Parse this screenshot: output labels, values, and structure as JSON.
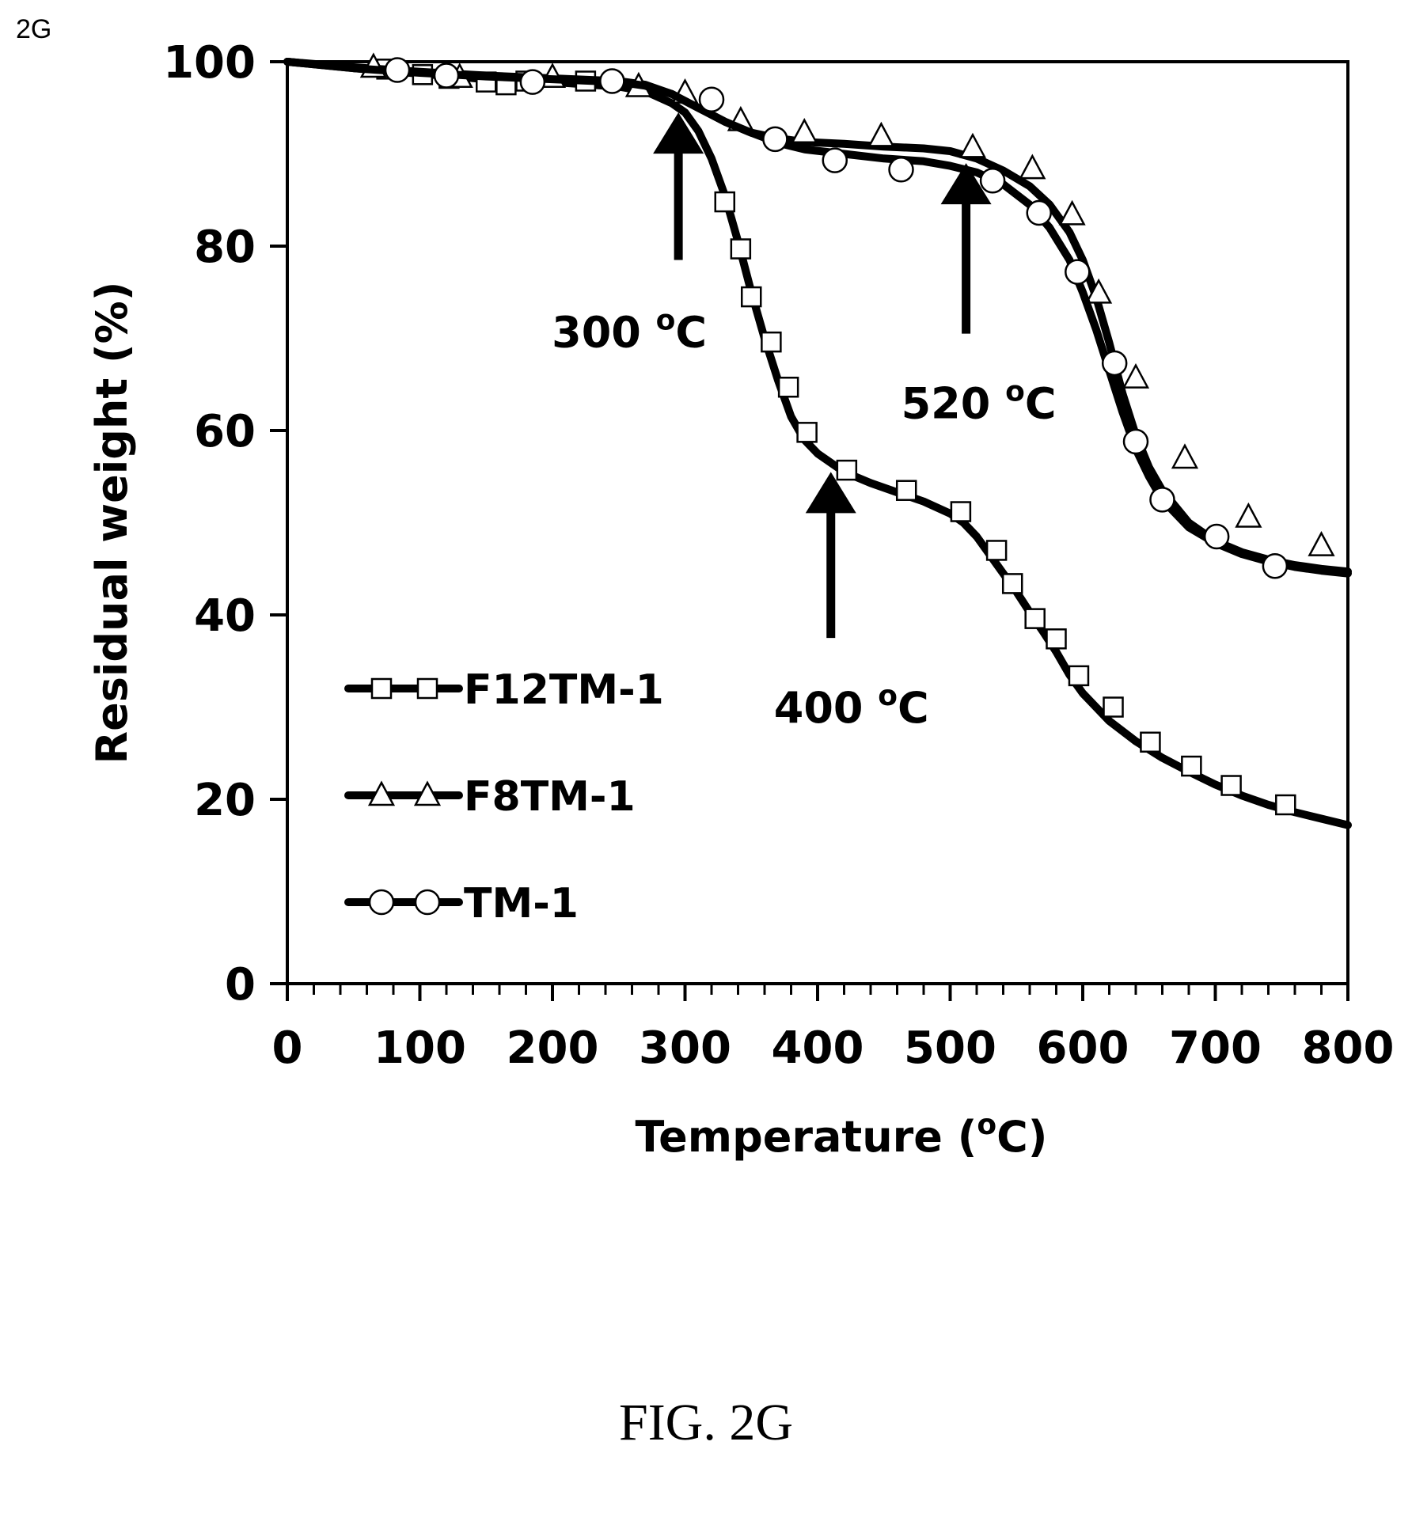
{
  "figure": {
    "corner_label": "2G",
    "caption": "FIG. 2G"
  },
  "chart_data": {
    "type": "line",
    "xlabel": "Temperature (",
    "xlabel_unit": "o",
    "xlabel_end": "C)",
    "ylabel": "Residual weight (%)",
    "xlim": [
      0,
      800
    ],
    "ylim": [
      0,
      100
    ],
    "x_ticks": [
      0,
      100,
      200,
      300,
      400,
      500,
      600,
      700,
      800
    ],
    "y_ticks": [
      0,
      20,
      40,
      60,
      80,
      100
    ],
    "x_tick_labels": [
      "0",
      "100",
      "200",
      "300",
      "400",
      "500",
      "600",
      "700",
      "800"
    ],
    "y_tick_labels": [
      "0",
      "20",
      "40",
      "60",
      "80",
      "100"
    ],
    "grid": false,
    "legend_position": "lower-left",
    "series": [
      {
        "name": "F12TM-1",
        "marker": "square",
        "curve": [
          [
            0,
            100
          ],
          [
            50,
            99.3
          ],
          [
            100,
            98.7
          ],
          [
            150,
            98.1
          ],
          [
            200,
            97.8
          ],
          [
            250,
            97.3
          ],
          [
            270,
            96.8
          ],
          [
            290,
            95.5
          ],
          [
            300,
            94.5
          ],
          [
            310,
            92.5
          ],
          [
            320,
            89.5
          ],
          [
            330,
            85.5
          ],
          [
            340,
            80.5
          ],
          [
            350,
            75
          ],
          [
            360,
            70
          ],
          [
            370,
            65.5
          ],
          [
            380,
            61.5
          ],
          [
            390,
            59
          ],
          [
            400,
            57.5
          ],
          [
            420,
            55.5
          ],
          [
            440,
            54.3
          ],
          [
            460,
            53.3
          ],
          [
            480,
            52.3
          ],
          [
            500,
            51
          ],
          [
            510,
            50
          ],
          [
            520,
            48.5
          ],
          [
            530,
            46.5
          ],
          [
            540,
            44.5
          ],
          [
            550,
            42.5
          ],
          [
            560,
            40.3
          ],
          [
            570,
            38.2
          ],
          [
            580,
            36
          ],
          [
            590,
            33.5
          ],
          [
            600,
            31.5
          ],
          [
            620,
            28.5
          ],
          [
            640,
            26.3
          ],
          [
            660,
            24.5
          ],
          [
            680,
            23
          ],
          [
            700,
            21.6
          ],
          [
            720,
            20.4
          ],
          [
            740,
            19.4
          ],
          [
            760,
            18.6
          ],
          [
            780,
            17.9
          ],
          [
            800,
            17.2
          ]
        ],
        "markers": [
          [
            75,
            99.2
          ],
          [
            102,
            98.6
          ],
          [
            122,
            98.2
          ],
          [
            150,
            97.8
          ],
          [
            165,
            97.5
          ],
          [
            180,
            97.9
          ],
          [
            225,
            97.9
          ],
          [
            330,
            84.8
          ],
          [
            342,
            79.7
          ],
          [
            350,
            74.5
          ],
          [
            365,
            69.6
          ],
          [
            378,
            64.7
          ],
          [
            392,
            59.8
          ],
          [
            422,
            55.7
          ],
          [
            467,
            53.5
          ],
          [
            508,
            51.2
          ],
          [
            535,
            47
          ],
          [
            547,
            43.4
          ],
          [
            564,
            39.6
          ],
          [
            580,
            37.4
          ],
          [
            597,
            33.4
          ],
          [
            623,
            30
          ],
          [
            651,
            26.2
          ],
          [
            682,
            23.6
          ],
          [
            712,
            21.5
          ],
          [
            753,
            19.4
          ]
        ]
      },
      {
        "name": "F8TM-1",
        "marker": "triangle",
        "curve": [
          [
            0,
            100
          ],
          [
            50,
            99.4
          ],
          [
            100,
            98.9
          ],
          [
            150,
            98.5
          ],
          [
            200,
            98.2
          ],
          [
            250,
            97.9
          ],
          [
            270,
            97.5
          ],
          [
            290,
            96.5
          ],
          [
            310,
            95
          ],
          [
            330,
            93.5
          ],
          [
            350,
            92.3
          ],
          [
            370,
            91.7
          ],
          [
            390,
            91.3
          ],
          [
            420,
            91.1
          ],
          [
            450,
            90.8
          ],
          [
            480,
            90.6
          ],
          [
            500,
            90.3
          ],
          [
            520,
            89.5
          ],
          [
            540,
            88.2
          ],
          [
            560,
            86.5
          ],
          [
            575,
            84.5
          ],
          [
            590,
            81.5
          ],
          [
            600,
            78.5
          ],
          [
            610,
            74.5
          ],
          [
            620,
            69.5
          ],
          [
            630,
            64
          ],
          [
            640,
            59.5
          ],
          [
            650,
            56
          ],
          [
            660,
            53.5
          ],
          [
            680,
            50
          ],
          [
            700,
            48
          ],
          [
            720,
            46.8
          ],
          [
            740,
            46
          ],
          [
            760,
            45.4
          ],
          [
            780,
            45
          ],
          [
            800,
            44.7
          ]
        ],
        "markers": [
          [
            65,
            99.4
          ],
          [
            130,
            98.3
          ],
          [
            200,
            98.3
          ],
          [
            265,
            97.3
          ],
          [
            300,
            96.6
          ],
          [
            342,
            93.6
          ],
          [
            390,
            92.3
          ],
          [
            448,
            91.9
          ],
          [
            517,
            90.7
          ],
          [
            562,
            88.4
          ],
          [
            592,
            83.4
          ],
          [
            612,
            74.9
          ],
          [
            640,
            65.7
          ],
          [
            677,
            57
          ],
          [
            725,
            50.6
          ],
          [
            780,
            47.5
          ]
        ]
      },
      {
        "name": "TM-1",
        "marker": "circle",
        "curve": [
          [
            0,
            100
          ],
          [
            50,
            99.3
          ],
          [
            100,
            98.8
          ],
          [
            150,
            98.4
          ],
          [
            200,
            98.1
          ],
          [
            250,
            97.8
          ],
          [
            270,
            97.4
          ],
          [
            290,
            96.5
          ],
          [
            310,
            95
          ],
          [
            330,
            93.5
          ],
          [
            350,
            92.3
          ],
          [
            370,
            91.2
          ],
          [
            390,
            90.5
          ],
          [
            420,
            90
          ],
          [
            450,
            89.5
          ],
          [
            480,
            89.2
          ],
          [
            500,
            88.7
          ],
          [
            520,
            88
          ],
          [
            540,
            86.7
          ],
          [
            560,
            84.5
          ],
          [
            575,
            82
          ],
          [
            590,
            78.5
          ],
          [
            600,
            75
          ],
          [
            610,
            71
          ],
          [
            620,
            66.5
          ],
          [
            630,
            62
          ],
          [
            640,
            58
          ],
          [
            650,
            55
          ],
          [
            660,
            52.5
          ],
          [
            680,
            49.5
          ],
          [
            700,
            47.8
          ],
          [
            720,
            46.6
          ],
          [
            740,
            45.8
          ],
          [
            760,
            45.2
          ],
          [
            780,
            44.8
          ],
          [
            800,
            44.5
          ]
        ],
        "markers": [
          [
            83,
            99.1
          ],
          [
            120,
            98.5
          ],
          [
            185,
            97.8
          ],
          [
            245,
            97.9
          ],
          [
            320,
            95.9
          ],
          [
            368,
            91.6
          ],
          [
            413,
            89.3
          ],
          [
            463,
            88.3
          ],
          [
            532,
            87.1
          ],
          [
            567,
            83.6
          ],
          [
            596,
            77.2
          ],
          [
            624,
            67.3
          ],
          [
            640,
            58.8
          ],
          [
            660,
            52.5
          ],
          [
            701,
            48.5
          ],
          [
            745,
            45.3
          ]
        ]
      }
    ],
    "annotations": [
      {
        "value": "300 ",
        "sup": "o",
        "unit": "C",
        "x": 295,
        "y_tip": 94.5,
        "y_tail": 78.5
      },
      {
        "value": "520 ",
        "sup": "o",
        "unit": "C",
        "x": 512,
        "y_tip": 89,
        "y_tail": 70.5
      },
      {
        "value": "400 ",
        "sup": "o",
        "unit": "C",
        "x": 410,
        "y_tip": 55.5,
        "y_tail": 37.5
      }
    ]
  }
}
